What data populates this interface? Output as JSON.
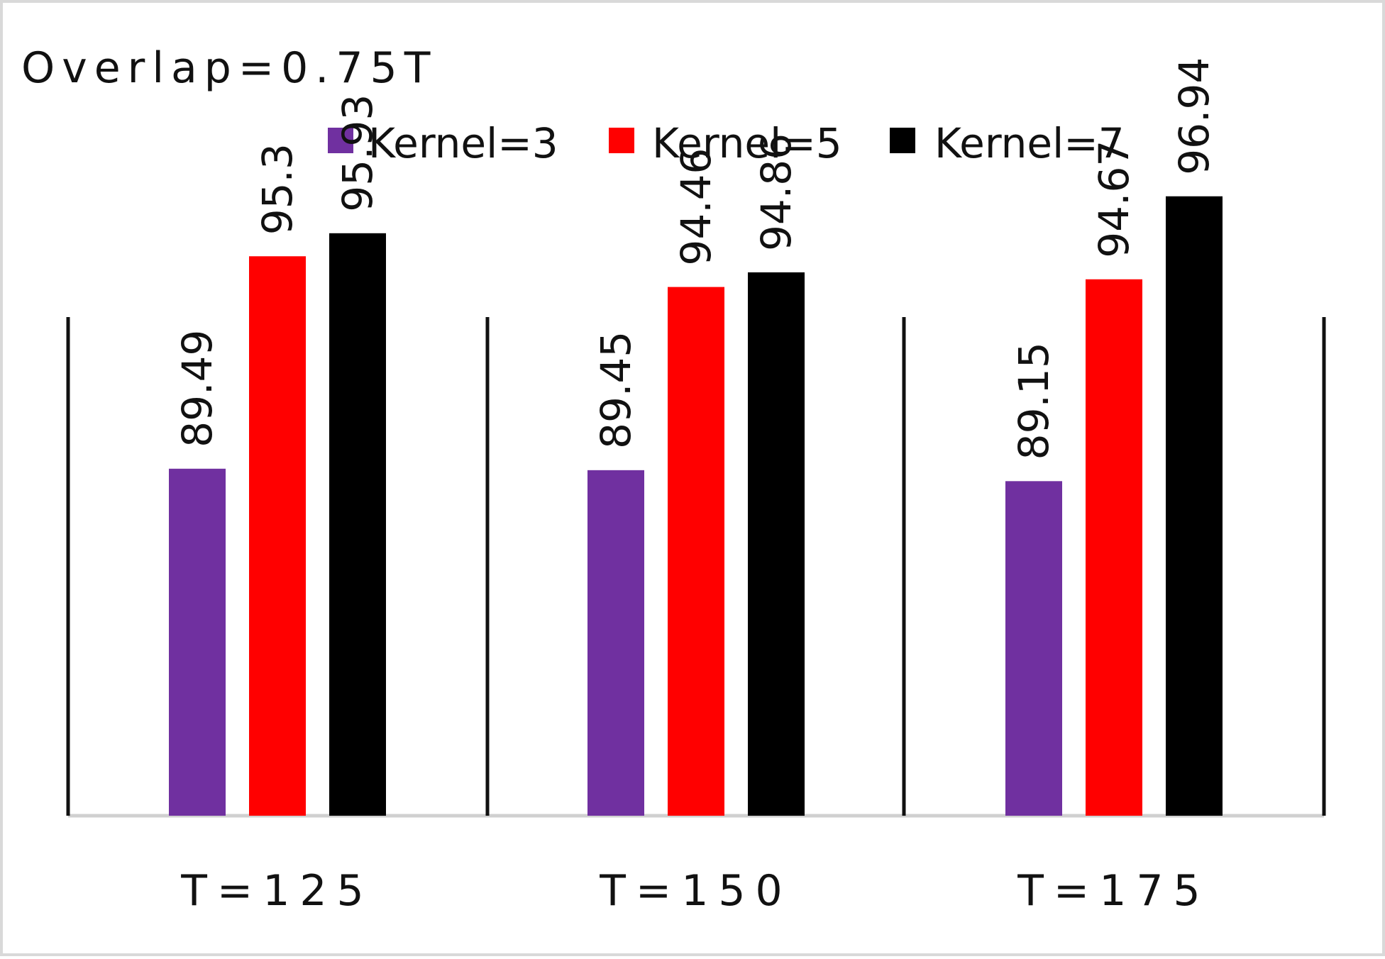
{
  "chart_data": {
    "type": "bar",
    "title": "Overlap=0.75T",
    "xlabel": "",
    "ylabel": "",
    "categories": [
      "T=125",
      "T=150",
      "T=175"
    ],
    "series": [
      {
        "name": "Kernel=3",
        "color": "#7030a0",
        "values": [
          89.49,
          89.45,
          89.15
        ]
      },
      {
        "name": "Kernel=5",
        "color": "#ff0000",
        "values": [
          95.3,
          94.46,
          94.67
        ]
      },
      {
        "name": "Kernel=7",
        "color": "#000000",
        "values": [
          95.93,
          94.86,
          96.94
        ]
      }
    ],
    "data_labels": [
      [
        "89.49",
        "95.3",
        "95.93"
      ],
      [
        "89.45",
        "94.46",
        "94.86"
      ],
      [
        "89.15",
        "94.67",
        "96.94"
      ]
    ],
    "ylim": [
      80,
      100
    ],
    "grid": false,
    "legend_position": "top"
  }
}
